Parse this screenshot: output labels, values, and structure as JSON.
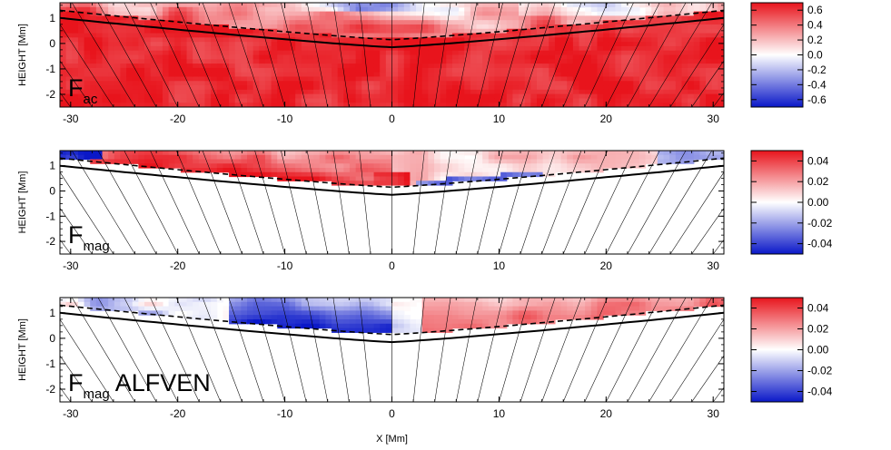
{
  "colors": {
    "positive": "#e8141c",
    "negative": "#0a18c8",
    "zero": "#ffffff",
    "frame": "#000000"
  },
  "chart_data": [
    {
      "type": "heatmap",
      "panel_label": {
        "main": "F",
        "sub": "ac",
        "suffix": ""
      },
      "xlabel": "",
      "ylabel": "HEIGHT [Mm]",
      "xlim": [
        -31,
        31
      ],
      "ylim": [
        -2.5,
        1.6
      ],
      "xticks": [
        "-30",
        "-20",
        "-10",
        "0",
        "10",
        "20",
        "30"
      ],
      "yticks": [
        "1",
        "0",
        "-1",
        "-2"
      ],
      "colorbar": {
        "min": -0.7,
        "max": 0.7,
        "ticks": [
          "0.6",
          "0.4",
          "0.2",
          "0.0",
          "-0.2",
          "-0.4",
          "-0.6"
        ]
      },
      "solid_curve_edge_height": 1.0,
      "solid_curve_center_height": -0.15,
      "dashed_curve_edge_height": 1.3,
      "dashed_curve_center_height": 0.15,
      "grid": false
    },
    {
      "type": "heatmap",
      "panel_label": {
        "main": "F",
        "sub": "mag",
        "suffix": ""
      },
      "xlabel": "",
      "ylabel": "HEIGHT [Mm]",
      "xlim": [
        -31,
        31
      ],
      "ylim": [
        -2.5,
        1.6
      ],
      "xticks": [
        "-30",
        "-20",
        "-10",
        "0",
        "10",
        "20",
        "30"
      ],
      "yticks": [
        "1",
        "0",
        "-1",
        "-2"
      ],
      "colorbar": {
        "min": -0.05,
        "max": 0.05,
        "ticks": [
          "0.04",
          "0.02",
          "0.00",
          "-0.02",
          "-0.04"
        ]
      },
      "solid_curve_edge_height": 1.0,
      "solid_curve_center_height": -0.15,
      "dashed_curve_edge_height": 1.3,
      "dashed_curve_center_height": 0.15,
      "grid": false
    },
    {
      "type": "heatmap",
      "panel_label": {
        "main": "F",
        "sub": "mag",
        "suffix": "ALFVEN"
      },
      "xlabel": "X [Mm]",
      "ylabel": "HEIGHT [Mm]",
      "xlim": [
        -31,
        31
      ],
      "ylim": [
        -2.5,
        1.6
      ],
      "xticks": [
        "-30",
        "-20",
        "-10",
        "0",
        "10",
        "20",
        "30"
      ],
      "yticks": [
        "1",
        "0",
        "-1",
        "-2"
      ],
      "colorbar": {
        "min": -0.05,
        "max": 0.05,
        "ticks": [
          "0.04",
          "0.02",
          "0.00",
          "-0.02",
          "-0.04"
        ]
      },
      "solid_curve_edge_height": 1.0,
      "solid_curve_center_height": -0.15,
      "dashed_curve_edge_height": 1.3,
      "dashed_curve_center_height": 0.15,
      "grid": false
    }
  ]
}
